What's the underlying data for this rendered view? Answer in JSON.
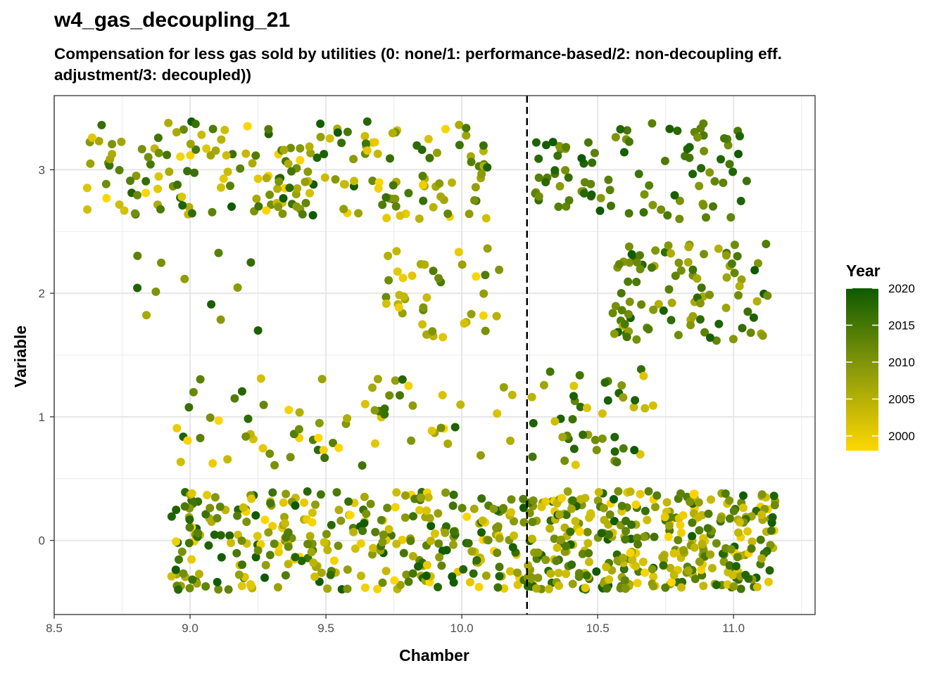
{
  "chart_data": {
    "type": "scatter",
    "title": "w4_gas_decoupling_21",
    "subtitle": "Compensation for less gas sold by utilities (0: none/1: performance-based/2: non-decoupling eff. adjustment/3: decoupled))",
    "xlabel": "Chamber",
    "ylabel": "Variable",
    "xlim": [
      8.5,
      11.3
    ],
    "ylim": [
      -0.6,
      3.6
    ],
    "xticks": [
      "8.5",
      "9.0",
      "9.5",
      "10.0",
      "10.5",
      "11.0"
    ],
    "yticks": [
      "0",
      "1",
      "2",
      "3"
    ],
    "grid": true,
    "vline": {
      "x": 10.24,
      "style": "dashed"
    },
    "jitter": {
      "x": 0.0,
      "y": 0.4
    },
    "legend": {
      "title": "Year",
      "position": "right",
      "labels": [
        "2020",
        "2015",
        "2010",
        "2005",
        "2000"
      ],
      "min_year": 1998,
      "max_year": 2020,
      "color_low": "#FFD700",
      "color_mid": "#8A9A0A",
      "color_high": "#0E5A00"
    },
    "clusters": [
      {
        "y": 3,
        "x_min": 8.62,
        "x_max": 10.1,
        "year_min": 1998,
        "year_max": 2020,
        "n": 210,
        "seed": 11
      },
      {
        "y": 3,
        "x_min": 10.25,
        "x_max": 11.05,
        "year_min": 2009,
        "year_max": 2020,
        "n": 95,
        "seed": 12
      },
      {
        "y": 2,
        "x_min": 8.8,
        "x_max": 9.3,
        "year_min": 2006,
        "year_max": 2020,
        "n": 12,
        "seed": 13
      },
      {
        "y": 2,
        "x_min": 9.72,
        "x_max": 10.15,
        "year_min": 1998,
        "year_max": 2016,
        "n": 40,
        "seed": 14
      },
      {
        "y": 2,
        "x_min": 10.55,
        "x_max": 11.13,
        "year_min": 2005,
        "year_max": 2020,
        "n": 95,
        "seed": 15
      },
      {
        "y": 1,
        "x_min": 8.92,
        "x_max": 10.25,
        "year_min": 1998,
        "year_max": 2020,
        "n": 70,
        "seed": 16
      },
      {
        "y": 1,
        "x_min": 10.25,
        "x_max": 10.75,
        "year_min": 2000,
        "year_max": 2020,
        "n": 45,
        "seed": 17
      },
      {
        "y": 0,
        "x_min": 8.93,
        "x_max": 10.24,
        "year_min": 1998,
        "year_max": 2020,
        "n": 330,
        "seed": 18
      },
      {
        "y": 0,
        "x_min": 10.24,
        "x_max": 11.16,
        "year_min": 1998,
        "year_max": 2020,
        "n": 360,
        "seed": 19
      }
    ]
  }
}
